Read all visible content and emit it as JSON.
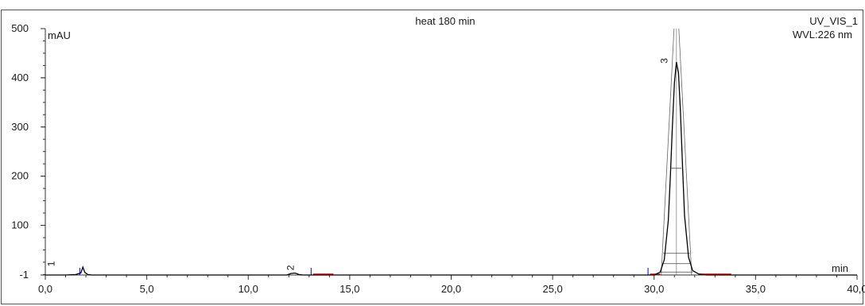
{
  "chart_data": {
    "type": "line",
    "title": "heat 180 min",
    "channel": "UV_VIS_1",
    "wavelength": "WVL:226 nm",
    "xlabel": "min",
    "ylabel": "mAU",
    "xlim": [
      0,
      40
    ],
    "ylim": [
      -1,
      500
    ],
    "x_ticks": [
      0,
      5,
      10,
      15,
      20,
      25,
      30,
      35,
      40
    ],
    "x_tick_labels": [
      "0,0",
      "5,0",
      "10,0",
      "15,0",
      "20,0",
      "25,0",
      "30,0",
      "35,0",
      "40,0"
    ],
    "y_ticks": [
      -1,
      100,
      200,
      300,
      400,
      500
    ],
    "y_tick_labels": [
      "-1",
      "100",
      "200",
      "300",
      "400",
      "500"
    ],
    "grid": false,
    "colors": {
      "signal": "#000000",
      "baseline": "#d40000",
      "marker": "#2a2ad4",
      "frame": "#555555"
    },
    "series": [
      {
        "x": [
          0.0,
          0.5,
          1.0,
          1.5,
          1.75,
          1.85,
          1.95,
          2.1,
          2.3,
          2.6,
          3.0,
          5.0,
          10.0,
          11.9,
          12.1,
          12.3,
          12.5,
          12.7,
          13.0,
          15.0,
          20.0,
          25.0,
          29.5,
          30.0,
          30.3,
          30.5,
          30.7,
          30.8,
          30.9,
          31.0,
          31.1,
          31.2,
          31.3,
          31.4,
          31.5,
          31.7,
          31.9,
          32.2,
          32.6,
          33.5,
          35.0,
          40.0
        ],
        "y": [
          -1,
          -1,
          -1,
          0,
          3,
          15,
          4,
          0,
          -1,
          -1,
          -1,
          -1,
          -1,
          -1,
          2,
          3,
          0,
          -1,
          -1,
          -1,
          -1,
          -1,
          -1,
          -1,
          5,
          30,
          110,
          200,
          300,
          390,
          432,
          410,
          330,
          220,
          120,
          35,
          8,
          1,
          -1,
          -1,
          -1,
          -1
        ]
      }
    ],
    "peaks": [
      {
        "label": "1",
        "x": 0.45,
        "y": 12
      },
      {
        "label": "2",
        "x": 12.25,
        "y": 4
      },
      {
        "label": "3",
        "x": 30.65,
        "y": 425
      }
    ],
    "baseline_segments": [
      [
        13.2,
        14.2
      ],
      [
        29.8,
        30.3
      ],
      [
        32.2,
        33.8
      ]
    ],
    "markers": [
      1.7,
      13.1,
      29.7
    ]
  }
}
